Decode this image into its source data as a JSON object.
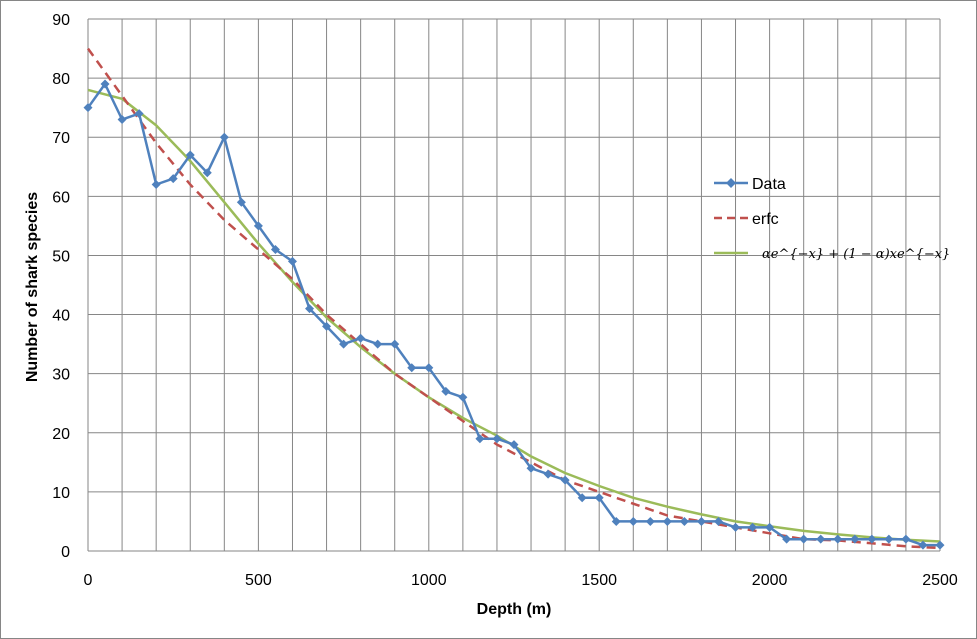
{
  "chart_data": {
    "type": "line",
    "xlabel": "Depth (m)",
    "ylabel": "Number of shark species",
    "xlim": [
      0,
      2500
    ],
    "ylim": [
      0,
      90
    ],
    "x_ticks": [
      "0",
      "500",
      "1000",
      "1500",
      "2000",
      "2500"
    ],
    "y_ticks": [
      "0",
      "10",
      "20",
      "30",
      "40",
      "50",
      "60",
      "70",
      "80",
      "90"
    ],
    "x_grid_step": 100,
    "y_grid_step": 10,
    "grid": true,
    "legend_position": "right",
    "series": [
      {
        "name": "Data",
        "style": "line-with-diamond-markers",
        "color": "#4F81BD",
        "x": [
          0,
          50,
          100,
          150,
          200,
          250,
          300,
          350,
          400,
          450,
          500,
          550,
          600,
          650,
          700,
          750,
          800,
          850,
          900,
          950,
          1000,
          1050,
          1100,
          1150,
          1200,
          1250,
          1300,
          1350,
          1400,
          1450,
          1500,
          1550,
          1600,
          1650,
          1700,
          1750,
          1800,
          1850,
          1900,
          1950,
          2000,
          2050,
          2100,
          2150,
          2200,
          2250,
          2300,
          2350,
          2400,
          2450,
          2500
        ],
        "y": [
          75,
          79,
          73,
          74,
          62,
          63,
          67,
          64,
          70,
          59,
          55,
          51,
          49,
          41,
          38,
          35,
          36,
          35,
          35,
          31,
          31,
          27,
          26,
          19,
          19,
          18,
          14,
          13,
          12,
          9,
          9,
          5,
          5,
          5,
          5,
          5,
          5,
          5,
          4,
          4,
          4,
          2,
          2,
          2,
          2,
          2,
          2,
          2,
          2,
          1,
          1
        ]
      },
      {
        "name": "erfc",
        "style": "dashed",
        "color": "#C0504D",
        "x": [
          0,
          100,
          200,
          300,
          400,
          500,
          600,
          700,
          800,
          900,
          1000,
          1100,
          1200,
          1300,
          1400,
          1500,
          1600,
          1700,
          1800,
          1900,
          2000,
          2100,
          2200,
          2300,
          2400,
          2500
        ],
        "y": [
          85,
          77,
          69,
          62,
          56,
          51,
          46,
          40,
          35,
          30,
          26,
          22,
          18,
          15,
          12,
          10,
          8,
          6,
          5,
          4,
          3,
          2,
          1.8,
          1.3,
          0.8,
          0.5
        ]
      },
      {
        "name": "αe^{−x} + (1 − α)xe^{−x}",
        "style": "solid",
        "color": "#9BBB59",
        "x": [
          0,
          100,
          200,
          300,
          400,
          500,
          600,
          700,
          800,
          900,
          1000,
          1100,
          1200,
          1300,
          1400,
          1500,
          1600,
          1700,
          1800,
          1900,
          2000,
          2100,
          2200,
          2300,
          2400,
          2500
        ],
        "y": [
          78,
          76.5,
          72,
          66,
          59,
          52,
          45.5,
          39.5,
          34.5,
          30,
          26,
          22.5,
          19.5,
          16,
          13.2,
          11,
          9,
          7.5,
          6.2,
          5,
          4.2,
          3.4,
          2.8,
          2.3,
          1.9,
          1.6
        ]
      }
    ]
  }
}
